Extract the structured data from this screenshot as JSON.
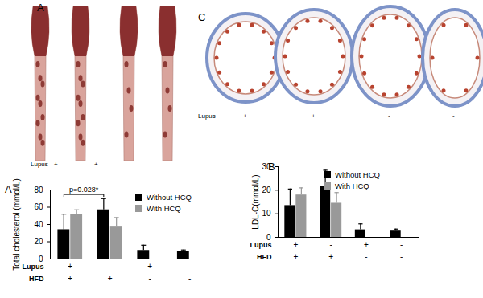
{
  "photo_panels": [
    {
      "label": "A",
      "row_label": "Lupus",
      "column_labels": [
        "+",
        "+",
        "-",
        "-"
      ]
    },
    {
      "label": "C",
      "row_label": "Lupus",
      "column_labels": [
        "+",
        "+",
        "-",
        "-"
      ]
    }
  ],
  "chart_data": [
    {
      "type": "bar",
      "title": "A",
      "ylabel": "Total cholesterol (mmol/L)",
      "categories": [
        null,
        null,
        null,
        null
      ],
      "row_labels": [
        {
          "name": "Lupus",
          "labels": [
            "+",
            "-",
            "+",
            "-"
          ]
        },
        {
          "name": "HFD",
          "labels": [
            "+",
            "+",
            "-",
            "-"
          ]
        }
      ],
      "series": [
        {
          "name": "Without HCQ",
          "color": "#000000",
          "values": [
            34,
            57,
            10,
            9
          ],
          "errors": [
            18,
            13,
            6,
            1.5
          ]
        },
        {
          "name": "With HCQ",
          "color": "#999999",
          "values": [
            52,
            38,
            null,
            null
          ],
          "errors": [
            5,
            10,
            null,
            null
          ]
        }
      ],
      "ylim": [
        0,
        80
      ],
      "yticks": [
        0,
        20,
        40,
        60,
        80
      ],
      "legend": "top-right",
      "annotations": [
        {
          "text": "p=0.028*",
          "from": 0,
          "to": 1,
          "series": "Without HCQ"
        }
      ]
    },
    {
      "type": "bar",
      "title": "B",
      "ylabel": "LDL-C(mmol/L)",
      "categories": [
        null,
        null,
        null,
        null
      ],
      "row_labels": [
        {
          "name": "Lupus",
          "labels": [
            "+",
            "-",
            "+",
            "-"
          ]
        },
        {
          "name": "HFD",
          "labels": [
            "+",
            "+",
            "-",
            "-"
          ]
        }
      ],
      "series": [
        {
          "name": "Without HCQ",
          "color": "#000000",
          "values": [
            13.5,
            21.5,
            3.2,
            3
          ],
          "errors": [
            7,
            7,
            2.5,
            0.5
          ]
        },
        {
          "name": "With HCQ",
          "color": "#999999",
          "values": [
            18,
            14.5,
            null,
            null
          ],
          "errors": [
            3,
            4.5,
            null,
            null
          ]
        }
      ],
      "ylim": [
        0,
        30
      ],
      "yticks": [
        0,
        10,
        20,
        30
      ],
      "legend": "top-right"
    }
  ]
}
